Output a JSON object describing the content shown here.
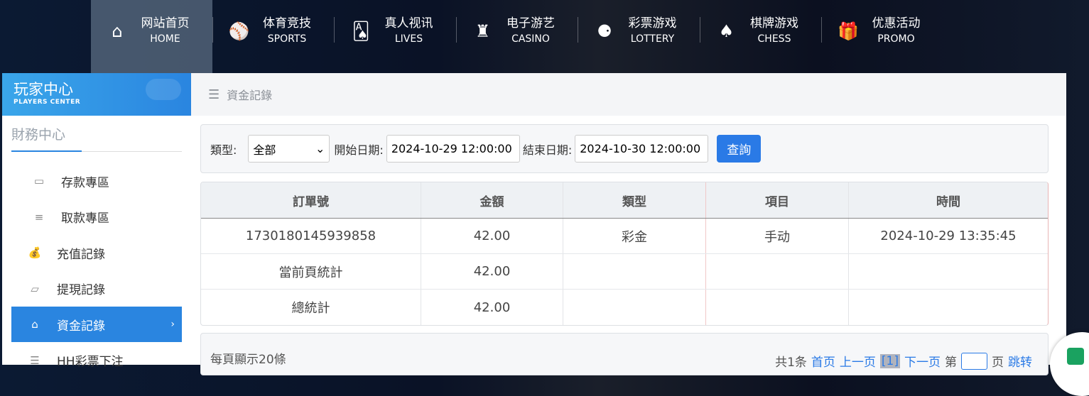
{
  "topnav": {
    "items": [
      {
        "cn": "网站首页",
        "en": "HOME",
        "icon": "home-icon",
        "glyph": "⌂"
      },
      {
        "cn": "体育竞技",
        "en": "SPORTS",
        "icon": "ball-icon",
        "glyph": "⚾"
      },
      {
        "cn": "真人视讯",
        "en": "LIVES",
        "icon": "cards-icon",
        "glyph": "🂡"
      },
      {
        "cn": "电子游艺",
        "en": "CASINO",
        "icon": "roulette-icon",
        "glyph": "♜"
      },
      {
        "cn": "彩票游戏",
        "en": "LOTTERY",
        "icon": "lottery-balls-icon",
        "glyph": "⚈"
      },
      {
        "cn": "棋牌游戏",
        "en": "CHESS",
        "icon": "spade-icon",
        "glyph": "♠"
      },
      {
        "cn": "优惠活动",
        "en": "PROMO",
        "icon": "gift-icon",
        "glyph": "🎁"
      }
    ]
  },
  "sidebar": {
    "title": "玩家中心",
    "subtitle": "PLAYERS CENTER",
    "section": "財務中心",
    "items": [
      {
        "label": "存款專區",
        "icon": "card-icon",
        "glyph": "▭"
      },
      {
        "label": "取款專區",
        "icon": "hand-money-icon",
        "glyph": "≡"
      },
      {
        "label": "充值記錄",
        "icon": "money-bag-icon",
        "glyph": "💰"
      },
      {
        "label": "提現記錄",
        "icon": "wallet-icon",
        "glyph": "▱"
      },
      {
        "label": "資金記錄",
        "icon": "fund-icon",
        "glyph": "⌂"
      },
      {
        "label": "HH彩票下注",
        "icon": "list-icon",
        "glyph": "☰"
      }
    ],
    "active_index": 4
  },
  "breadcrumb": {
    "icon": "menu-icon",
    "label": "資金記錄"
  },
  "filter": {
    "type_label": "類型:",
    "type_value": "全部",
    "start_label": "開始日期:",
    "start_value": "2024-10-29 12:00:00",
    "end_label": "結束日期:",
    "end_value": "2024-10-30 12:00:00",
    "query_label": "查詢"
  },
  "table": {
    "headers": [
      "訂單號",
      "金額",
      "類型",
      "項目",
      "時間"
    ],
    "rows": [
      [
        "1730180145939858",
        "42.00",
        "彩金",
        "手动",
        "2024-10-29 13:35:45"
      ],
      [
        "當前頁統計",
        "42.00",
        "",
        "",
        ""
      ],
      [
        "總統計",
        "42.00",
        "",
        "",
        ""
      ]
    ]
  },
  "pager": {
    "per_page": "每頁顯示20條",
    "total": "共1条",
    "first": "首页",
    "prev": "上一页",
    "current": "[1]",
    "next": "下一页",
    "page_prefix": "第",
    "page_suffix": "页",
    "jump": "跳转"
  },
  "colors": {
    "accent": "#2a85e0",
    "button": "#2a7ae6"
  }
}
